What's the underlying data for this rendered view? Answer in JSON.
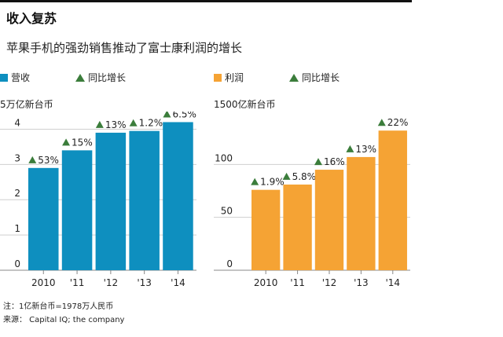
{
  "header": {
    "title": "收入复苏",
    "subtitle": "苹果手机的强劲销售推动了富士康利润的增长"
  },
  "footer": {
    "note": "注：1亿新台币=1978万人民币",
    "source": "来源：  Capital IQ; the company"
  },
  "chart_data": [
    {
      "type": "bar",
      "legend": [
        "营收",
        "同比增长"
      ],
      "ylabel": "5万亿新台币",
      "categories": [
        "2010",
        "'11",
        "'12",
        "'13",
        "'14"
      ],
      "values": [
        2.9,
        3.4,
        3.9,
        3.95,
        4.2
      ],
      "growth_labels": [
        "53%",
        "15%",
        "13%",
        "1.2%",
        "6.5%"
      ],
      "yticks": [
        0,
        1,
        2,
        3,
        4
      ],
      "ylim": [
        0,
        4.5
      ],
      "color": "#0e8fbf",
      "grid": true
    },
    {
      "type": "bar",
      "legend": [
        "利润",
        "同比增长"
      ],
      "ylabel": "1500亿新台币",
      "categories": [
        "2010",
        "'11",
        "'12",
        "'13",
        "'14"
      ],
      "values": [
        76,
        81,
        95,
        107,
        132
      ],
      "growth_labels": [
        "1.9%",
        "5.8%",
        "16%",
        "13%",
        "22%"
      ],
      "yticks": [
        0,
        50,
        100
      ],
      "ylim": [
        0,
        150
      ],
      "color": "#f5a334",
      "grid": true
    }
  ]
}
